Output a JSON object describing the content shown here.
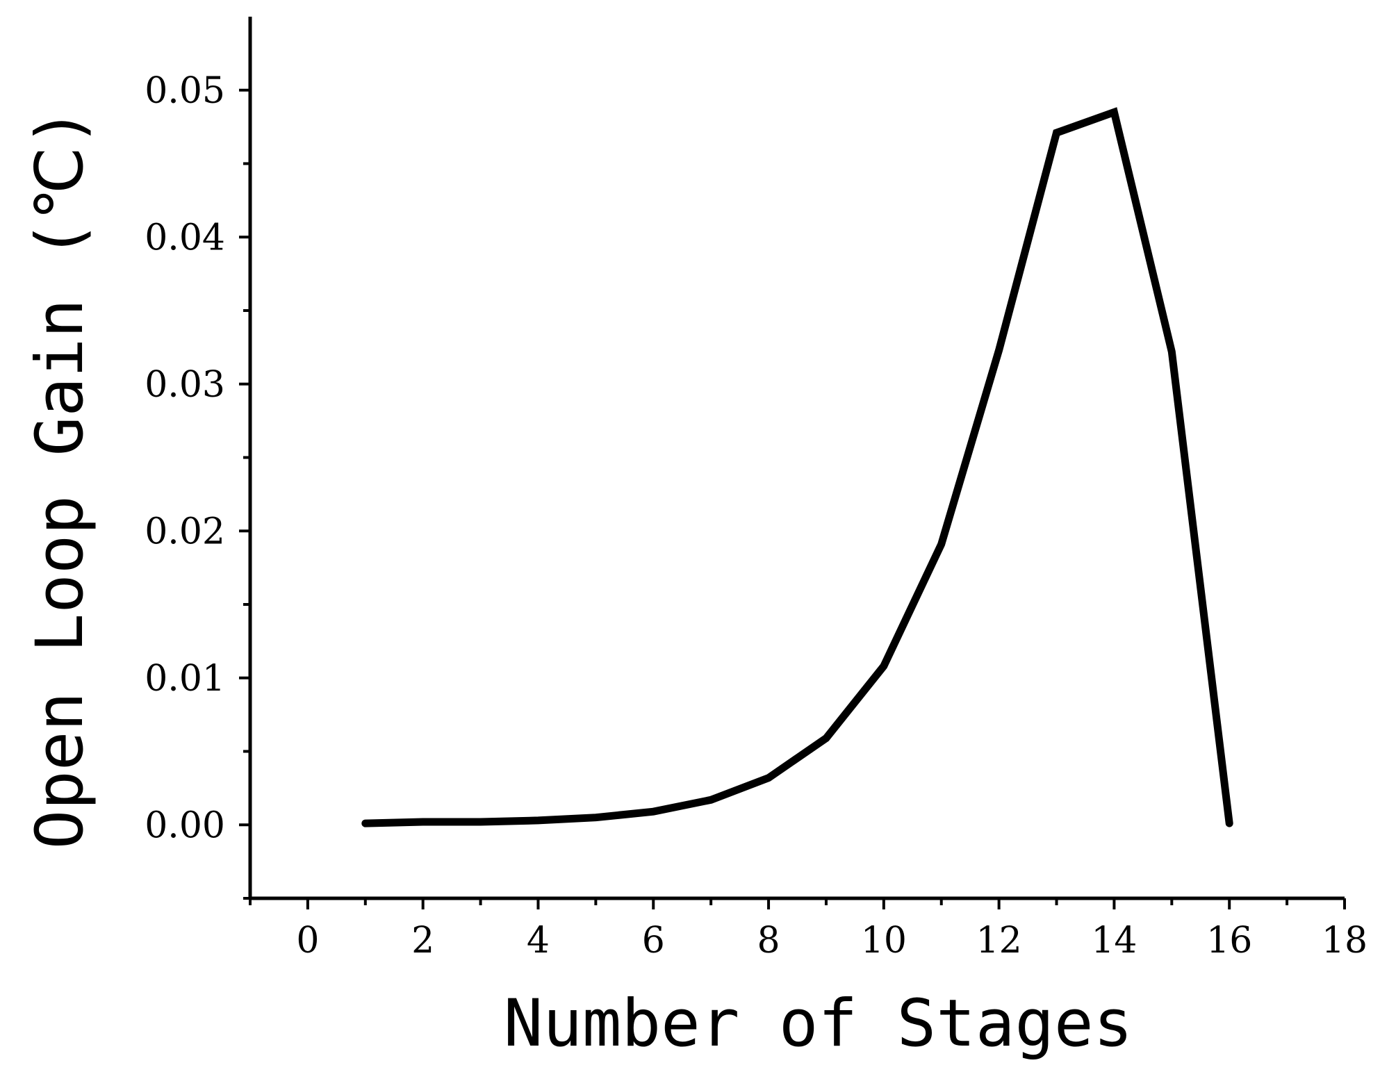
{
  "chart_data": {
    "type": "line",
    "title": "",
    "xlabel": "Number of Stages",
    "ylabel": "Open Loop Gain (℃)",
    "xlim": [
      -1,
      18
    ],
    "ylim": [
      -0.005,
      0.055
    ],
    "x_ticks": [
      0,
      2,
      4,
      6,
      8,
      10,
      12,
      14,
      16,
      18
    ],
    "x_tick_labels": [
      "0",
      "2",
      "4",
      "6",
      "8",
      "10",
      "12",
      "14",
      "16",
      "18"
    ],
    "y_ticks": [
      0.0,
      0.01,
      0.02,
      0.03,
      0.04,
      0.05
    ],
    "y_tick_labels": [
      "0.00",
      "0.01",
      "0.02",
      "0.03",
      "0.04",
      "0.05"
    ],
    "grid": false,
    "series": [
      {
        "color": "#000000",
        "x": [
          1,
          2,
          3,
          4,
          5,
          6,
          7,
          8,
          9,
          10,
          11,
          12,
          13,
          14,
          15,
          16
        ],
        "y": [
          0.0001,
          0.0002,
          0.0002,
          0.0003,
          0.0005,
          0.0009,
          0.0017,
          0.0032,
          0.0059,
          0.0108,
          0.0191,
          0.0323,
          0.0471,
          0.0485,
          0.0322,
          0.0001
        ]
      }
    ]
  }
}
